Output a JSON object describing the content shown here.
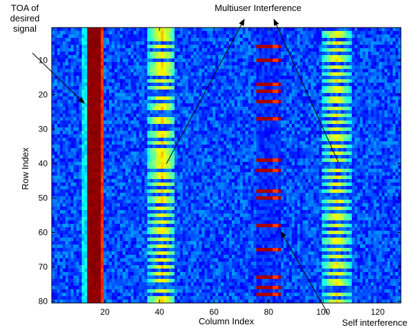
{
  "chart_data": {
    "type": "heatmap",
    "title": "",
    "xlabel": "Column Index",
    "ylabel": "Row Index",
    "xlim": [
      0.5,
      128.5
    ],
    "ylim": [
      80.5,
      0.5
    ],
    "n_rows": 80,
    "n_cols": 128,
    "x_ticks": [
      20,
      40,
      60,
      80,
      100,
      120
    ],
    "y_ticks": [
      10,
      20,
      30,
      40,
      50,
      60,
      70,
      80
    ],
    "colormap": "jet",
    "background_color": "#1030c0",
    "bands": [
      {
        "name": "TOA of desired signal",
        "columns": [
          12,
          13
        ],
        "rows": "all",
        "level": "cyan-blue"
      },
      {
        "name": "strong direct path",
        "columns": [
          14,
          18
        ],
        "rows": "all",
        "level": "dark-red"
      },
      {
        "name": "edge",
        "columns": [
          19,
          19
        ],
        "rows": "all",
        "level": "yellow"
      },
      {
        "name": "multiuser band 1",
        "columns": [
          36,
          45
        ],
        "rows": "periodic",
        "level": "cyan"
      },
      {
        "name": "self interference band",
        "columns": [
          76,
          84
        ],
        "rows": [
          6,
          10,
          17,
          19,
          22,
          27,
          39,
          42,
          48,
          50,
          58,
          65,
          73,
          76,
          78
        ],
        "level": "dark-red/yellow"
      },
      {
        "name": "multiuser band 2",
        "columns": [
          100,
          110
        ],
        "rows": "periodic",
        "level": "cyan"
      }
    ]
  },
  "annotations": {
    "toa_line1": "TOA of",
    "toa_line2": "desired",
    "toa_line3": "signal",
    "multiuser": "Multiuser Interference",
    "self": "Self interference"
  }
}
